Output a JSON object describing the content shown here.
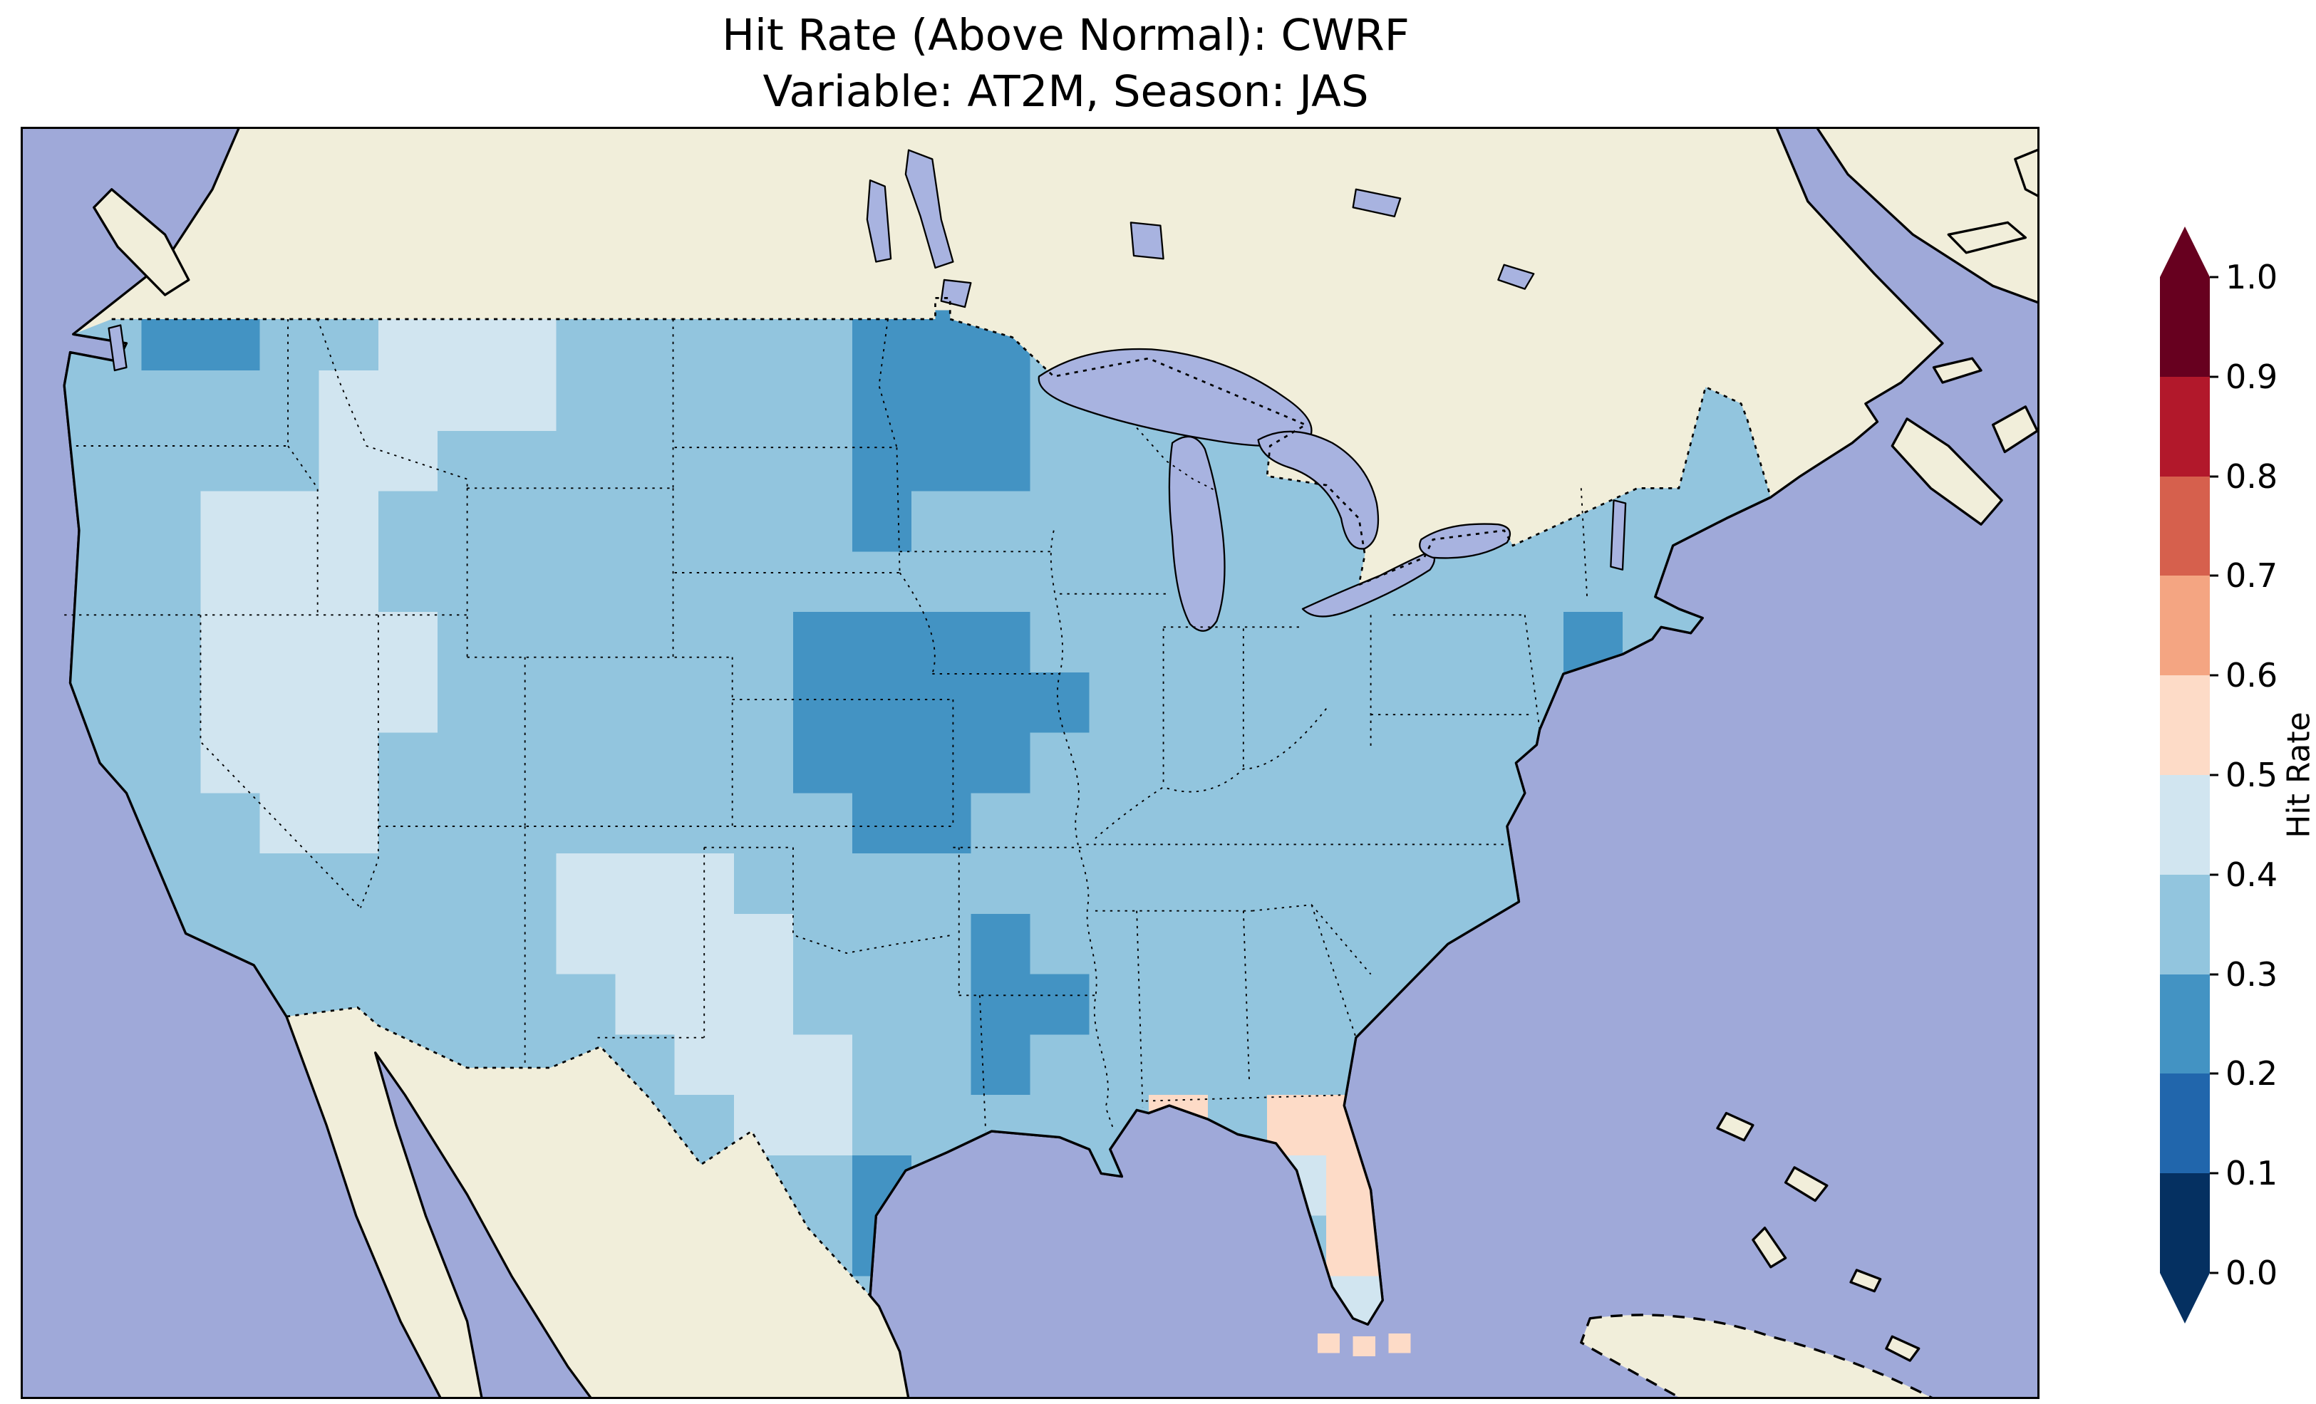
{
  "title": {
    "line1": "Hit Rate (Above Normal): CWRF",
    "line2": "Variable: AT2M, Season: JAS"
  },
  "colorbar": {
    "label": "Hit Rate",
    "ticks_top_to_bottom": [
      "1.0",
      "0.9",
      "0.8",
      "0.7",
      "0.6",
      "0.5",
      "0.4",
      "0.3",
      "0.2",
      "0.1",
      "0.0"
    ],
    "segments_bottom_to_top": [
      "#053061",
      "#2166ac",
      "#4393c3",
      "#92c5de",
      "#d1e5f0",
      "#fddbc7",
      "#f4a582",
      "#d6604d",
      "#b2182b",
      "#67001f"
    ],
    "under_arrow_color": "#053061",
    "over_arrow_color": "#67001f"
  },
  "map": {
    "ocean_color": "#9fa9d9",
    "land_color": "#f1eeda",
    "lake_color": "#a8b3e0",
    "frame_color": "#000000",
    "grid": {
      "cell_size": 40,
      "legend": {
        "a": "#d1e5f0",
        "b": "#92c5de",
        "c": "#4393c3",
        "d": "#fddbc7"
      },
      "bins": {
        "a": "0.4-0.5",
        "b": "0.3-0.4",
        "c": "0.2-0.3",
        "d": "0.5-0.6"
      },
      "rows": [
        "..................................",
        "..................................",
        "..................................",
        "bbccbbaaabbbbbcccb..........b.....",
        "bbbbbaaaabbbbbcccbbbbb.....cbb....",
        "bbbbbaabbbbbbbcccbbbbb..bbbbbb....",
        "bbbaaabbbbbbbbcbbbbbbbbbbbbbbb....",
        "bbbaaabbbbbbbbbbbbbbbbbbbbbbbb....",
        "bbbaaaabbbbbbccccbbbbbbbbbcbbb....",
        "bbbaaaabbbbbbcccccbbbbbbbbbbbb....",
        "bbbaaabbbbbbbccccbbbbbbbbbbbbb....",
        "bbbbaabbbbbbbbccbbbbbbbbbbbbbb....",
        "bbbbbbbbbaaabbbbbbbbbbbbbbbcbb....",
        "bbbbbbbbbaaaabbbcbbbbbbbbbbbbb....",
        "bbbbbbbbbbaaabbbccbbbbbbbbbbbb....",
        "bbbbbbbbbbbaaabbcbbbbbbbbbbbbb....",
        "bbbbbbbbbbbbaabbbbbdbddbbbbbbb....",
        "bbbbbbbbbbbbbbcbbbbbbadabbbbbb....",
        "bbbbbbbbbbbbbbcbbbbbbbdabbbbbb....",
        "bbbbbbbbbbbbbbbbbbbbbbadbbbbbb....",
        ".................................."
      ]
    },
    "keys_cells": [
      [
        874,
        798
      ],
      [
        898,
        800
      ],
      [
        922,
        798
      ]
    ]
  },
  "chart_data": {
    "type": "heatmap",
    "title": "Hit Rate (Above Normal): CWRF",
    "subtitle": "Variable: AT2M, Season: JAS",
    "region": "Continental United States",
    "colorbar_label": "Hit Rate",
    "colorbar_range": [
      0.0,
      1.0
    ],
    "colorbar_ticks": [
      0.0,
      0.1,
      0.2,
      0.3,
      0.4,
      0.5,
      0.6,
      0.7,
      0.8,
      0.9,
      1.0
    ],
    "colormap": "RdBu reversed (dark blue = low hit rate, dark red = high hit rate), discrete 0.1 bins with extend arrows",
    "summary": "Most of the U.S. shows hit rates of 0.3-0.4 (light blue); 0.4-0.5 (pale) over Nevada/Utah/New Mexico/west Texas; 0.2-0.3 (darker blue) over Minnesota/North Dakota, Nebraska-Kansas-Missouri, and Arkansas-Louisiana; small 0.5-0.6 (pale orange) patches along the Gulf coast, Florida and the Keys."
  }
}
